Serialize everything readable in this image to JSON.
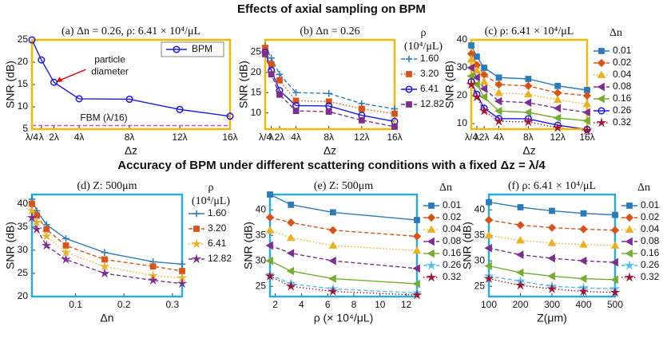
{
  "headings": [
    "Effects of axial sampling on BPM",
    "Accuracy of BPM under different scattering conditions with a fixed Δz = λ/4"
  ],
  "chart_data": [
    {
      "type": "line",
      "title": "(a) Δn = 0.26, ρ: 6.41 × 10⁴/μL",
      "xlabel": "Δz",
      "ylabel": "SNR (dB)",
      "frame_color": "#f5b800",
      "legend": "upper-right",
      "x": [
        0.25,
        1,
        2,
        4,
        8,
        12,
        16
      ],
      "xlim": [
        0.25,
        16
      ],
      "xticks": [
        {
          "value": 0.25,
          "label": "λ/4"
        },
        {
          "value": 1,
          "label": "λ"
        },
        {
          "value": 2,
          "label": "2λ"
        },
        {
          "value": 4,
          "label": "4λ"
        },
        {
          "value": 8,
          "label": "8λ"
        },
        {
          "value": 12,
          "label": "12λ"
        },
        {
          "value": 16,
          "label": "16λ"
        }
      ],
      "ylim": [
        5,
        25
      ],
      "yticks": [
        5,
        10,
        15,
        20,
        25
      ],
      "series": [
        {
          "name": "BPM",
          "color": "#1a1ae6",
          "marker": "circle",
          "dash": "solid",
          "values": [
            25,
            20.5,
            15.5,
            11.8,
            11.7,
            9.4,
            7.9
          ]
        }
      ],
      "reference_line": {
        "label": "FBM (λ/16)",
        "value": 5.8,
        "color": "#e03ce0"
      },
      "annotation": {
        "text": [
          "particle",
          "diameter"
        ],
        "x": 2,
        "y": 15.5,
        "color": "#e01010"
      }
    },
    {
      "type": "line",
      "title": "(b) Δn = 0.26",
      "xlabel": "Δz",
      "ylabel": "SNR (dB)",
      "frame_color": "#f5b800",
      "legend": "right",
      "legend_title": [
        "ρ",
        "(10⁴/μL)"
      ],
      "x": [
        0.25,
        1,
        2,
        4,
        8,
        12,
        16
      ],
      "xlim": [
        0.25,
        16
      ],
      "xticks": [
        {
          "value": 0.25,
          "label": "λ/4"
        },
        {
          "value": 1,
          "label": "λ"
        },
        {
          "value": 2,
          "label": "2λ"
        },
        {
          "value": 4,
          "label": "4λ"
        },
        {
          "value": 8,
          "label": "8λ"
        },
        {
          "value": 12,
          "label": "12λ"
        },
        {
          "value": 16,
          "label": "16λ"
        }
      ],
      "ylim": [
        6,
        28
      ],
      "yticks": [
        10,
        15,
        20,
        25
      ],
      "series": [
        {
          "name": "1.60",
          "color": "#2b7bba",
          "marker": "plus",
          "dash": "dashed",
          "values": [
            26.5,
            23.5,
            19.5,
            15,
            14.8,
            12.3,
            11
          ]
        },
        {
          "name": "3.20",
          "color": "#d95319",
          "marker": "square",
          "dash": "dotted",
          "values": [
            26,
            22,
            18,
            13,
            12.8,
            11,
            9.8
          ]
        },
        {
          "name": "6.41",
          "color": "#1a1ae6",
          "marker": "circle",
          "dash": "solid",
          "values": [
            25,
            20.5,
            15.5,
            11.8,
            11.7,
            9.4,
            7.9
          ]
        },
        {
          "name": "12.82",
          "color": "#7e2f8e",
          "marker": "square",
          "dash": "dashed",
          "values": [
            24.5,
            19.5,
            14.5,
            10.5,
            10.3,
            8.2,
            6.6
          ]
        }
      ]
    },
    {
      "type": "line",
      "title": "(c) ρ: 6.41 × 10⁴/μL",
      "xlabel": "Δz",
      "ylabel": "SNR (dB)",
      "frame_color": "#f5b800",
      "legend": "right",
      "legend_title": [
        "Δn"
      ],
      "x": [
        0.25,
        1,
        2,
        4,
        8,
        12,
        16
      ],
      "xlim": [
        0.25,
        16
      ],
      "xticks": [
        {
          "value": 0.25,
          "label": "λ/4"
        },
        {
          "value": 1,
          "label": "λ"
        },
        {
          "value": 2,
          "label": "2λ"
        },
        {
          "value": 4,
          "label": "4λ"
        },
        {
          "value": 8,
          "label": "8λ"
        },
        {
          "value": 12,
          "label": "12λ"
        },
        {
          "value": 16,
          "label": "16λ"
        }
      ],
      "ylim": [
        8,
        40
      ],
      "yticks": [
        10,
        20,
        30,
        40
      ],
      "series": [
        {
          "name": "0.01",
          "color": "#2b7bba",
          "marker": "square",
          "dash": "solid",
          "values": [
            38,
            34,
            30,
            26.5,
            26,
            23.5,
            22
          ]
        },
        {
          "name": "0.02",
          "color": "#d95319",
          "marker": "diamond",
          "dash": "dashed",
          "values": [
            35,
            31,
            27.5,
            24,
            23.5,
            21,
            20
          ]
        },
        {
          "name": "0.04",
          "color": "#edb120",
          "marker": "triangle",
          "dash": "dotted",
          "values": [
            33,
            29,
            25,
            21,
            20.5,
            18.5,
            17
          ]
        },
        {
          "name": "0.08",
          "color": "#7e2f8e",
          "marker": "tri-left",
          "dash": "dashed",
          "values": [
            30,
            26.5,
            22.5,
            18,
            17.5,
            15.5,
            14
          ]
        },
        {
          "name": "0.16",
          "color": "#77ac30",
          "marker": "tri-left",
          "dash": "solid",
          "values": [
            27,
            24,
            19.5,
            14.5,
            14,
            12,
            11
          ]
        },
        {
          "name": "0.26",
          "color": "#1a1ae6",
          "marker": "circle",
          "dash": "solid",
          "values": [
            25,
            20.5,
            15.5,
            11.8,
            11.7,
            9.4,
            7.9
          ]
        },
        {
          "name": "0.32",
          "color": "#a2142f",
          "marker": "star",
          "dash": "dotted",
          "values": [
            24,
            19.5,
            14.5,
            10.8,
            10.6,
            8.5,
            7.5
          ]
        }
      ]
    },
    {
      "type": "line",
      "title": "(d) Z: 500μm",
      "xlabel": "Δn",
      "ylabel": "SNR (dB)",
      "frame_color": "#29abe2",
      "legend": "right",
      "legend_title": [
        "ρ",
        "(10⁴/μL)"
      ],
      "x": [
        0.01,
        0.02,
        0.04,
        0.08,
        0.16,
        0.26,
        0.32
      ],
      "xlim": [
        0.01,
        0.32
      ],
      "xticks": [
        0.1,
        0.2,
        0.3
      ],
      "ylim": [
        20,
        42
      ],
      "yticks": [
        20,
        25,
        30,
        35,
        40
      ],
      "series": [
        {
          "name": "1.60",
          "color": "#2b7bba",
          "marker": "plus",
          "dash": "solid",
          "values": [
            41,
            38.5,
            35.5,
            32.5,
            29.5,
            27.5,
            27
          ]
        },
        {
          "name": "3.20",
          "color": "#d95319",
          "marker": "square",
          "dash": "dashed",
          "values": [
            40,
            37.5,
            34.5,
            31,
            28,
            26.5,
            25.5
          ]
        },
        {
          "name": "6.41",
          "color": "#edb120",
          "marker": "star",
          "dash": "dotted",
          "values": [
            38.5,
            36,
            33,
            29.5,
            26.5,
            24.5,
            24
          ]
        },
        {
          "name": "12.82",
          "color": "#7e2f8e",
          "marker": "star",
          "dash": "dashed",
          "values": [
            37,
            34.5,
            31,
            28,
            25,
            23.5,
            22.8
          ]
        }
      ]
    },
    {
      "type": "line",
      "title": "(e) Z: 500μm",
      "xlabel": "ρ (× 10⁴/μL)",
      "ylabel": "SNR (dB)",
      "frame_color": "#29abe2",
      "legend": "right",
      "legend_title": [
        "Δn"
      ],
      "x": [
        1.6,
        3.2,
        6.41,
        12.82
      ],
      "xlim": [
        1.6,
        12.82
      ],
      "xticks": [
        2,
        4,
        6,
        8,
        10,
        12
      ],
      "ylim": [
        23,
        43
      ],
      "yticks": [
        25,
        30,
        35,
        40
      ],
      "series": [
        {
          "name": "0.01",
          "color": "#2b7bba",
          "marker": "square",
          "dash": "solid",
          "values": [
            43,
            41,
            39.5,
            38
          ]
        },
        {
          "name": "0.02",
          "color": "#d95319",
          "marker": "diamond",
          "dash": "dashed",
          "values": [
            38.5,
            37.5,
            36,
            34.8
          ]
        },
        {
          "name": "0.04",
          "color": "#edb120",
          "marker": "triangle",
          "dash": "dotted",
          "values": [
            36,
            34.5,
            33,
            32
          ]
        },
        {
          "name": "0.08",
          "color": "#7e2f8e",
          "marker": "tri-left",
          "dash": "dashed",
          "values": [
            33,
            31.5,
            30,
            28.5
          ]
        },
        {
          "name": "0.16",
          "color": "#77ac30",
          "marker": "tri-left",
          "dash": "solid",
          "values": [
            30,
            28,
            26.5,
            25.5
          ]
        },
        {
          "name": "0.26",
          "color": "#4dbeee",
          "marker": "star",
          "dash": "dashed",
          "values": [
            27.3,
            25.5,
            24.5,
            23.7
          ]
        },
        {
          "name": "0.32",
          "color": "#a2142f",
          "marker": "star",
          "dash": "dotted",
          "values": [
            27,
            25,
            24,
            23.3
          ]
        }
      ]
    },
    {
      "type": "line",
      "title": "(f) ρ: 6.41 × 10⁴/μL",
      "xlabel": "Z(μm)",
      "ylabel": "SNR (dB)",
      "frame_color": "#29abe2",
      "legend": "right",
      "legend_title": [
        "Δn"
      ],
      "x": [
        100,
        200,
        300,
        400,
        500
      ],
      "xlim": [
        100,
        500
      ],
      "xticks": [
        100,
        200,
        300,
        400,
        500
      ],
      "ylim": [
        23,
        43
      ],
      "yticks": [
        25,
        30,
        35,
        40
      ],
      "series": [
        {
          "name": "0.01",
          "color": "#2b7bba",
          "marker": "square",
          "dash": "solid",
          "values": [
            41.5,
            40.5,
            39.8,
            39.3,
            39
          ]
        },
        {
          "name": "0.02",
          "color": "#d95319",
          "marker": "diamond",
          "dash": "dashed",
          "values": [
            38,
            37,
            36.5,
            36.2,
            36
          ]
        },
        {
          "name": "0.04",
          "color": "#edb120",
          "marker": "triangle",
          "dash": "dotted",
          "values": [
            35,
            34,
            33.5,
            33.2,
            33
          ]
        },
        {
          "name": "0.08",
          "color": "#7e2f8e",
          "marker": "tri-left",
          "dash": "dashed",
          "values": [
            32.5,
            31.2,
            30.5,
            30,
            29.7
          ]
        },
        {
          "name": "0.16",
          "color": "#77ac30",
          "marker": "tri-left",
          "dash": "solid",
          "values": [
            29,
            27.7,
            27,
            26.5,
            26.3
          ]
        },
        {
          "name": "0.26",
          "color": "#4dbeee",
          "marker": "star",
          "dash": "dashed",
          "values": [
            27,
            26,
            25,
            24.7,
            24.5
          ]
        },
        {
          "name": "0.32",
          "color": "#a2142f",
          "marker": "star",
          "dash": "dotted",
          "values": [
            26.5,
            25.2,
            24.5,
            24,
            23.8
          ]
        }
      ]
    }
  ]
}
